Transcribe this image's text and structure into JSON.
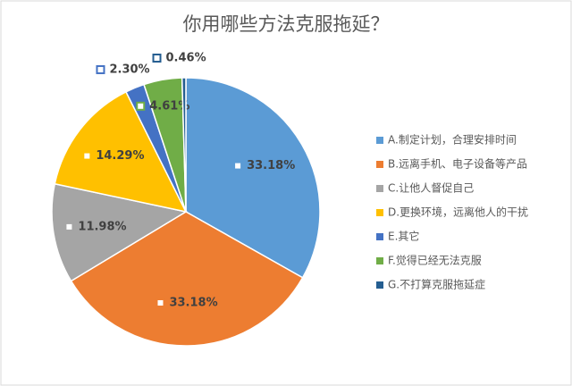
{
  "chart_data": {
    "type": "pie",
    "title": "你用哪些方法克服拖延？",
    "categories": [
      "A.制定计划，合理安排时间",
      "B.远离手机、电子设备等产品",
      "C.让他人督促自己",
      "D.更换环境，远离他人的干扰",
      "E.其它",
      "F.觉得已经无法克服",
      "G.不打算克服拖延症"
    ],
    "values": [
      33.18,
      33.18,
      11.98,
      14.29,
      2.3,
      4.61,
      0.46
    ],
    "value_labels": [
      "33.18%",
      "33.18%",
      "11.98%",
      "14.29%",
      "2.30%",
      "4.61%",
      "0.46%"
    ],
    "colors": [
      "#5b9bd5",
      "#ed7d31",
      "#a5a5a5",
      "#ffc000",
      "#4472c4",
      "#70ad47",
      "#255e91"
    ],
    "legend": "right"
  }
}
